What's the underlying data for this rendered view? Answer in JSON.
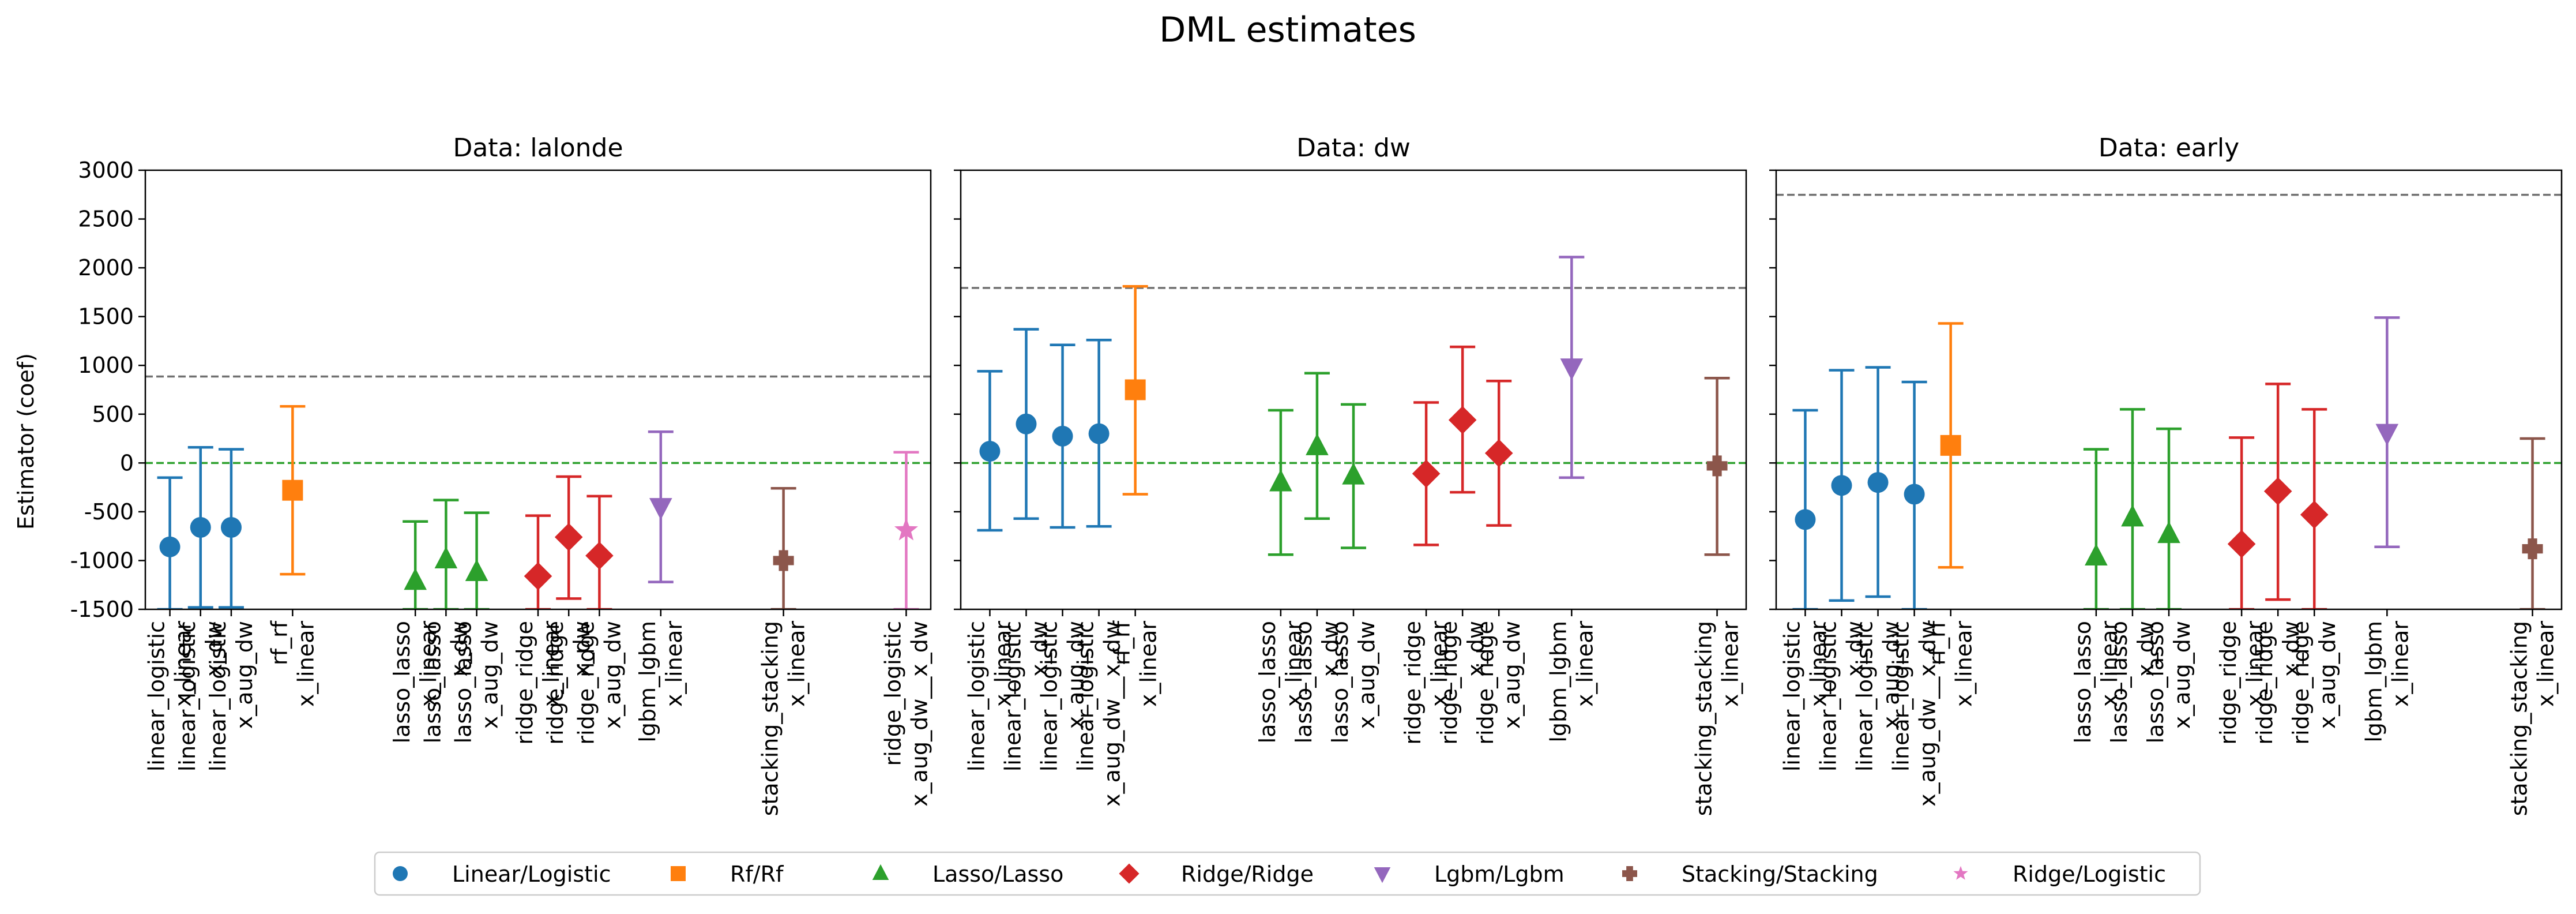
{
  "suptitle": "DML estimates",
  "ylabel": "Estimator (coef)",
  "ylim": [
    -1500,
    3000
  ],
  "yticks": [
    -1500,
    -1000,
    -500,
    0,
    500,
    1000,
    1500,
    2000,
    2500,
    3000
  ],
  "zero_line_color": "#2ca02c",
  "true_line_color": "#707070",
  "legend": [
    {
      "label": "Linear/Logistic",
      "marker": "circle",
      "color": "#1f77b4"
    },
    {
      "label": "Rf/Rf",
      "marker": "square",
      "color": "#ff7f0e"
    },
    {
      "label": "Lasso/Lasso",
      "marker": "triangle-up",
      "color": "#2ca02c"
    },
    {
      "label": "Ridge/Ridge",
      "marker": "diamond",
      "color": "#d62728"
    },
    {
      "label": "Lgbm/Lgbm",
      "marker": "triangle-down",
      "color": "#9467bd"
    },
    {
      "label": "Stacking/Stacking",
      "marker": "plus",
      "color": "#8c564b"
    },
    {
      "label": "Ridge/Logistic",
      "marker": "star",
      "color": "#e377c2"
    }
  ],
  "chart_data": [
    {
      "type": "errorbar",
      "title": "Data: lalonde",
      "xlim": [
        0.2,
        25.8
      ],
      "true_effect": 886,
      "points": [
        {
          "x": 1,
          "label": "linear_logistic\nx_linear",
          "group": 0,
          "est": -860,
          "lo": -1500,
          "hi": -150
        },
        {
          "x": 2,
          "label": "linear_logistic\nx_dw",
          "group": 0,
          "est": -660,
          "lo": -1480,
          "hi": 160
        },
        {
          "x": 3,
          "label": "linear_logistic\nx_aug_dw",
          "group": 0,
          "est": -660,
          "lo": -1480,
          "hi": 140
        },
        {
          "x": 5,
          "label": "rf_rf\nx_linear",
          "group": 1,
          "est": -280,
          "lo": -1140,
          "hi": 580
        },
        {
          "x": 9,
          "label": "lasso_lasso\nx_linear",
          "group": 2,
          "est": -1210,
          "lo": -1500,
          "hi": -600
        },
        {
          "x": 10,
          "label": "lasso_lasso\nx_dw",
          "group": 2,
          "est": -990,
          "lo": -1500,
          "hi": -380
        },
        {
          "x": 11,
          "label": "lasso_lasso\nx_aug_dw",
          "group": 2,
          "est": -1120,
          "lo": -1500,
          "hi": -510
        },
        {
          "x": 13,
          "label": "ridge_ridge\nx_linear",
          "group": 3,
          "est": -1160,
          "lo": -1500,
          "hi": -540
        },
        {
          "x": 14,
          "label": "ridge_ridge\nx_dw",
          "group": 3,
          "est": -760,
          "lo": -1390,
          "hi": -140
        },
        {
          "x": 15,
          "label": "ridge_ridge\nx_aug_dw",
          "group": 3,
          "est": -950,
          "lo": -1500,
          "hi": -340
        },
        {
          "x": 17,
          "label": "lgbm_lgbm\nx_linear",
          "group": 4,
          "est": -450,
          "lo": -1220,
          "hi": 320
        },
        {
          "x": 21,
          "label": "stacking_stacking\nx_linear",
          "group": 5,
          "est": -1000,
          "lo": -1500,
          "hi": -260
        },
        {
          "x": 25,
          "label": "ridge_logistic\nx_aug_dw__x_dw",
          "group": 6,
          "est": -690,
          "lo": -1500,
          "hi": 110
        }
      ]
    },
    {
      "type": "errorbar",
      "title": "Data: dw",
      "xlim": [
        0.2,
        21.8
      ],
      "true_effect": 1794,
      "points": [
        {
          "x": 1,
          "label": "linear_logistic\nx_linear",
          "group": 0,
          "est": 120,
          "lo": -690,
          "hi": 940
        },
        {
          "x": 2,
          "label": "linear_logistic\nx_dw",
          "group": 0,
          "est": 400,
          "lo": -570,
          "hi": 1370
        },
        {
          "x": 3,
          "label": "linear_logistic\nx_aug_dw",
          "group": 0,
          "est": 275,
          "lo": -660,
          "hi": 1210
        },
        {
          "x": 4,
          "label": "linear_logistic\nx_aug_dw__x_dw",
          "group": 0,
          "est": 300,
          "lo": -650,
          "hi": 1260
        },
        {
          "x": 5,
          "label": "rf_rf\nx_linear",
          "group": 1,
          "est": 750,
          "lo": -320,
          "hi": 1810
        },
        {
          "x": 9,
          "label": "lasso_lasso\nx_linear",
          "group": 2,
          "est": -200,
          "lo": -940,
          "hi": 540
        },
        {
          "x": 10,
          "label": "lasso_lasso\nx_dw",
          "group": 2,
          "est": 170,
          "lo": -570,
          "hi": 920
        },
        {
          "x": 11,
          "label": "lasso_lasso\nx_aug_dw",
          "group": 2,
          "est": -130,
          "lo": -870,
          "hi": 600
        },
        {
          "x": 13,
          "label": "ridge_ridge\nx_linear",
          "group": 3,
          "est": -110,
          "lo": -840,
          "hi": 620
        },
        {
          "x": 14,
          "label": "ridge_ridge\nx_dw",
          "group": 3,
          "est": 440,
          "lo": -300,
          "hi": 1190
        },
        {
          "x": 15,
          "label": "ridge_ridge\nx_aug_dw",
          "group": 3,
          "est": 100,
          "lo": -640,
          "hi": 840
        },
        {
          "x": 17,
          "label": "lgbm_lgbm\nx_linear",
          "group": 4,
          "est": 980,
          "lo": -150,
          "hi": 2110
        },
        {
          "x": 21,
          "label": "stacking_stacking\nx_linear",
          "group": 5,
          "est": -30,
          "lo": -940,
          "hi": 870
        }
      ]
    },
    {
      "type": "errorbar",
      "title": "Data: early",
      "xlim": [
        0.2,
        21.8
      ],
      "true_effect": 2748,
      "points": [
        {
          "x": 1,
          "label": "linear_logistic\nx_linear",
          "group": 0,
          "est": -580,
          "lo": -1500,
          "hi": 540
        },
        {
          "x": 2,
          "label": "linear_logistic\nx_dw",
          "group": 0,
          "est": -230,
          "lo": -1410,
          "hi": 950
        },
        {
          "x": 3,
          "label": "linear_logistic\nx_aug_dw",
          "group": 0,
          "est": -200,
          "lo": -1370,
          "hi": 980
        },
        {
          "x": 4,
          "label": "linear_logistic\nx_aug_dw__x_dw",
          "group": 0,
          "est": -320,
          "lo": -1500,
          "hi": 830
        },
        {
          "x": 5,
          "label": "rf_rf\nx_linear",
          "group": 1,
          "est": 180,
          "lo": -1070,
          "hi": 1430
        },
        {
          "x": 9,
          "label": "lasso_lasso\nx_linear",
          "group": 2,
          "est": -960,
          "lo": -1500,
          "hi": 140
        },
        {
          "x": 10,
          "label": "lasso_lasso\nx_dw",
          "group": 2,
          "est": -560,
          "lo": -1500,
          "hi": 550
        },
        {
          "x": 11,
          "label": "lasso_lasso\nx_aug_dw",
          "group": 2,
          "est": -730,
          "lo": -1500,
          "hi": 350
        },
        {
          "x": 13,
          "label": "ridge_ridge\nx_linear",
          "group": 3,
          "est": -830,
          "lo": -1500,
          "hi": 260
        },
        {
          "x": 14,
          "label": "ridge_ridge\nx_dw",
          "group": 3,
          "est": -290,
          "lo": -1400,
          "hi": 810
        },
        {
          "x": 15,
          "label": "ridge_ridge\nx_aug_dw",
          "group": 3,
          "est": -530,
          "lo": -1500,
          "hi": 550
        },
        {
          "x": 17,
          "label": "lgbm_lgbm\nx_linear",
          "group": 4,
          "est": 310,
          "lo": -860,
          "hi": 1490
        },
        {
          "x": 21,
          "label": "stacking_stacking\nx_linear",
          "group": 5,
          "est": -880,
          "lo": -1500,
          "hi": 250
        }
      ]
    }
  ]
}
